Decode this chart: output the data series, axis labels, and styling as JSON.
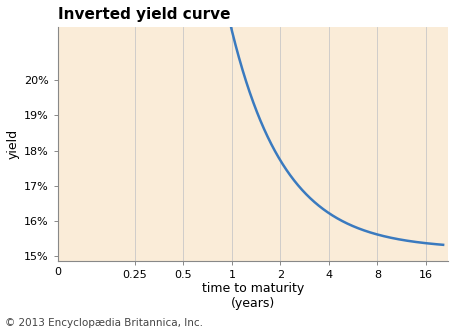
{
  "title": "Inverted yield curve",
  "xlabel": "time to maturity\n(years)",
  "ylabel": "yield",
  "background_color": "#faecd8",
  "figure_bg": "#ffffff",
  "line_color": "#3a7abf",
  "line_width": 1.8,
  "xtick_positions": [
    0.25,
    0.5,
    1,
    2,
    4,
    8,
    16
  ],
  "xtick_labels": [
    "0.25",
    "0.5",
    "1",
    "2",
    "4",
    "8",
    "16"
  ],
  "ytick_positions": [
    0.15,
    0.16,
    0.17,
    0.18,
    0.19,
    0.2
  ],
  "ytick_labels": [
    "15%",
    "16%",
    "17%",
    "18%",
    "19%",
    "20%"
  ],
  "ylim": [
    0.1485,
    0.215
  ],
  "xlim": [
    0.083,
    22.0
  ],
  "curve_A": 0.062,
  "curve_k": 1.3,
  "curve_C": 0.152,
  "curve_x_start": 0.083,
  "curve_x_end": 20.5,
  "copyright_text": "© 2013 Encyclopædia Britannica, Inc.",
  "title_fontsize": 11,
  "axis_label_fontsize": 9,
  "tick_fontsize": 8,
  "copyright_fontsize": 7.5,
  "grid_color": "#c8c8c8",
  "grid_linewidth": 0.6,
  "spine_color": "#888888"
}
